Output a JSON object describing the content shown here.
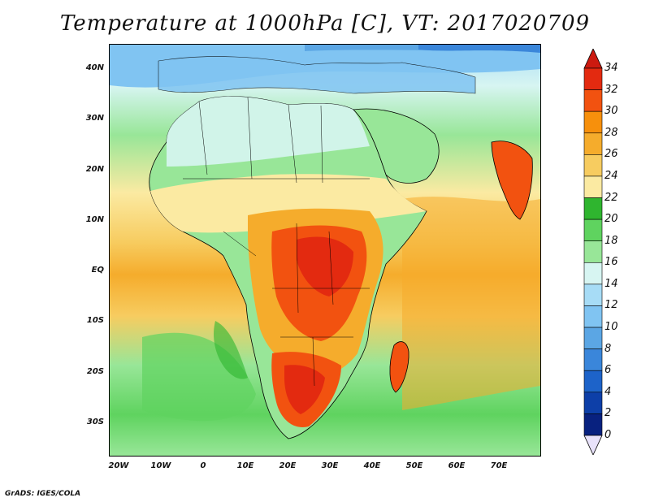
{
  "title": "Temperature at 1000hPa [C], VT: 2017020709",
  "credit": "GrADS: IGES/COLA",
  "map": {
    "variable": "Temperature at 1000hPa",
    "units": "C",
    "valid_time": "2017020709",
    "lat_ticks": [
      "40N",
      "30N",
      "20N",
      "10N",
      "EQ",
      "10S",
      "20S",
      "30S"
    ],
    "lon_ticks": [
      "20W",
      "10W",
      "0",
      "10E",
      "20E",
      "30E",
      "40E",
      "50E",
      "60E",
      "70E"
    ],
    "lon_range": [
      -22,
      80
    ],
    "lat_range": [
      -36,
      45
    ]
  },
  "colorbar": {
    "labels": [
      "34",
      "32",
      "30",
      "28",
      "26",
      "24",
      "22",
      "20",
      "18",
      "16",
      "14",
      "12",
      "10",
      "8",
      "6",
      "4",
      "2",
      "0"
    ],
    "colors": [
      "#e32a10",
      "#f25210",
      "#f7900c",
      "#f5ac2c",
      "#f7cc60",
      "#fbeaa2",
      "#2fb52f",
      "#5fd35f",
      "#98e698",
      "#d7f5f2",
      "#a7dcf6",
      "#80c4f2",
      "#5ba6e4",
      "#3a86da",
      "#1d63c9",
      "#0d3fa8",
      "#08217f"
    ],
    "max_arrow_color": "#cc1a10",
    "min_arrow_color": "#e8e2fa"
  }
}
